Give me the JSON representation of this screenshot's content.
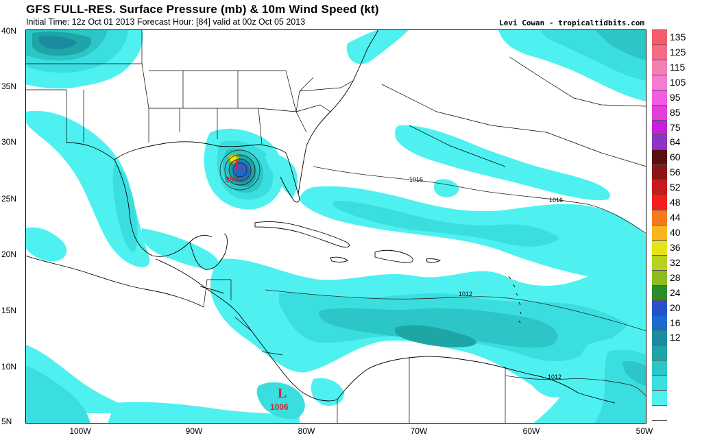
{
  "header": {
    "title": "GFS FULL-RES. Surface Pressure (mb) & 10m Wind Speed (kt)",
    "subtitle": "Initial Time: 12z Oct 01 2013 Forecast Hour: [84] valid at 00z Oct 05 2013",
    "credit": "Levi Cowan - tropicaltidbits.com"
  },
  "map": {
    "lat_ticks": [
      "40N",
      "35N",
      "30N",
      "25N",
      "20N",
      "15N",
      "10N",
      "5N"
    ],
    "lon_ticks": [
      "100W",
      "90W",
      "80W",
      "70W",
      "60W",
      "50W"
    ],
    "lows": [
      {
        "symbol": "L",
        "pressure": "999"
      },
      {
        "symbol": "L",
        "pressure": "1006"
      }
    ],
    "isobar_labels": [
      "1016",
      "1016",
      "1012",
      "1012"
    ]
  },
  "colorbar": {
    "unit": "kt",
    "levels": [
      {
        "label": "135",
        "color": "#f45c69"
      },
      {
        "label": "125",
        "color": "#f66c86"
      },
      {
        "label": "115",
        "color": "#f57fb2"
      },
      {
        "label": "105",
        "color": "#f47ad6"
      },
      {
        "label": "95",
        "color": "#f25be2"
      },
      {
        "label": "85",
        "color": "#e33ddc"
      },
      {
        "label": "75",
        "color": "#c51ee0"
      },
      {
        "label": "64",
        "color": "#8e33c5"
      },
      {
        "label": "60",
        "color": "#5a1010"
      },
      {
        "label": "56",
        "color": "#8a1616"
      },
      {
        "label": "52",
        "color": "#c81a1a"
      },
      {
        "label": "48",
        "color": "#f21f1f"
      },
      {
        "label": "44",
        "color": "#f47a1d"
      },
      {
        "label": "40",
        "color": "#f5b71c"
      },
      {
        "label": "36",
        "color": "#e5e41b"
      },
      {
        "label": "32",
        "color": "#b8d11d"
      },
      {
        "label": "28",
        "color": "#8cbc1e"
      },
      {
        "label": "24",
        "color": "#2a8c2a"
      },
      {
        "label": "20",
        "color": "#2452c8"
      },
      {
        "label": "16",
        "color": "#1e6acc"
      },
      {
        "label": "12",
        "color": "#1a8ba0"
      },
      {
        "label": "",
        "color": "#1ea5a5"
      },
      {
        "label": "",
        "color": "#2cc6c6"
      },
      {
        "label": "",
        "color": "#3bdede"
      },
      {
        "label": "",
        "color": "#4ef1ef"
      },
      {
        "label": "",
        "color": "#ffffff"
      }
    ],
    "tick_labels": [
      "135",
      "125",
      "115",
      "105",
      "95",
      "85",
      "75",
      "64",
      "60",
      "56",
      "52",
      "48",
      "44",
      "40",
      "36",
      "32",
      "28",
      "24",
      "20",
      "16",
      "12"
    ]
  }
}
